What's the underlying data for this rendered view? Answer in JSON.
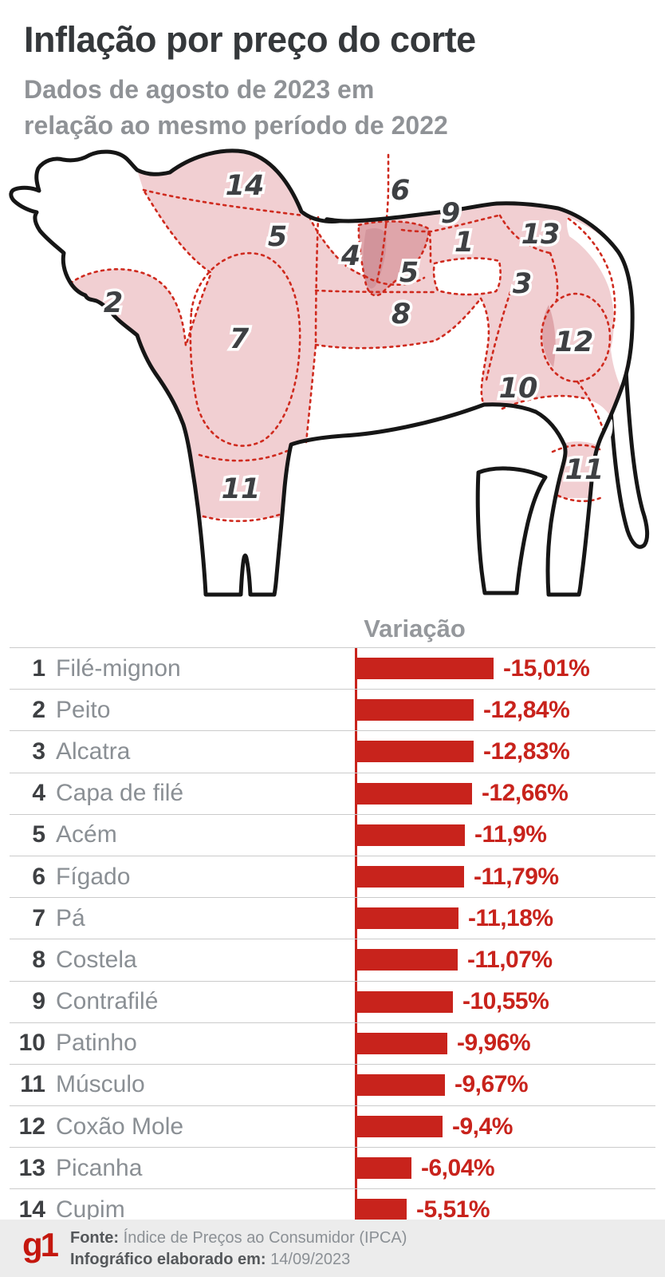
{
  "header": {
    "title": "Inflação por preço do corte",
    "subtitle": "Dados de agosto de 2023 em relação ao mesmo período de 2022"
  },
  "table": {
    "column_header": "Variação"
  },
  "cuts": [
    {
      "num": "1",
      "name": "Filé-mignon",
      "value": 15.01,
      "label": "-15,01%"
    },
    {
      "num": "2",
      "name": "Peito",
      "value": 12.84,
      "label": "-12,84%"
    },
    {
      "num": "3",
      "name": "Alcatra",
      "value": 12.83,
      "label": "-12,83%"
    },
    {
      "num": "4",
      "name": "Capa de filé",
      "value": 12.66,
      "label": "-12,66%"
    },
    {
      "num": "5",
      "name": "Acém",
      "value": 11.9,
      "label": "-11,9%"
    },
    {
      "num": "6",
      "name": "Fígado",
      "value": 11.79,
      "label": "-11,79%"
    },
    {
      "num": "7",
      "name": "Pá",
      "value": 11.18,
      "label": "-11,18%"
    },
    {
      "num": "8",
      "name": "Costela",
      "value": 11.07,
      "label": "-11,07%"
    },
    {
      "num": "9",
      "name": "Contrafilé",
      "value": 10.55,
      "label": "-10,55%"
    },
    {
      "num": "10",
      "name": "Patinho",
      "value": 9.96,
      "label": "-9,96%"
    },
    {
      "num": "11",
      "name": "Músculo",
      "value": 9.67,
      "label": "-9,67%"
    },
    {
      "num": "12",
      "name": "Coxão Mole",
      "value": 9.4,
      "label": "-9,4%"
    },
    {
      "num": "13",
      "name": "Picanha",
      "value": 6.04,
      "label": "-6,04%"
    },
    {
      "num": "14",
      "name": "Cupim",
      "value": 5.51,
      "label": "-5,51%"
    }
  ],
  "chart_data": {
    "type": "bar",
    "title": "Variação",
    "orientation": "horizontal",
    "categories": [
      "1 Filé-mignon",
      "2 Peito",
      "3 Alcatra",
      "4 Capa de filé",
      "5 Acém",
      "6 Fígado",
      "7 Pá",
      "8 Costela",
      "9 Contrafilé",
      "10 Patinho",
      "11 Músculo",
      "12 Coxão Mole",
      "13 Picanha",
      "14 Cupim"
    ],
    "values": [
      -15.01,
      -12.84,
      -12.83,
      -12.66,
      -11.9,
      -11.79,
      -11.18,
      -11.07,
      -10.55,
      -9.96,
      -9.67,
      -9.4,
      -6.04,
      -5.51
    ],
    "value_labels": [
      "-15,01%",
      "-12,84%",
      "-12,83%",
      "-12,66%",
      "-11,9%",
      "-11,79%",
      "-11,18%",
      "-11,07%",
      "-10,55%",
      "-9,96%",
      "-9,67%",
      "-9,4%",
      "-6,04%",
      "-5,51%"
    ],
    "xlabel": "",
    "ylabel": "",
    "xlim": [
      0,
      15.01
    ],
    "grid": false,
    "legend": null
  },
  "cow": {
    "labels": [
      "14",
      "6",
      "9",
      "5",
      "4",
      "1",
      "13",
      "5",
      "3",
      "2",
      "8",
      "7",
      "12",
      "10",
      "11",
      "11"
    ]
  },
  "footer": {
    "logo": "g1",
    "source_label": "Fonte:",
    "source_text": "Índice de Preços ao Consumidor (IPCA)",
    "made_label": "Infográfico elaborado em:",
    "made_date": "14/09/2023"
  },
  "colors": {
    "accent_red": "#c8231c",
    "dash_red": "#cf2a1e",
    "cow_pink": "#f1cfd2",
    "cow_pink_medium": "#dfa5aa",
    "cow_pink_dark": "#d2949b",
    "g1_red": "#c4170e",
    "footer_bg": "#ececec"
  }
}
